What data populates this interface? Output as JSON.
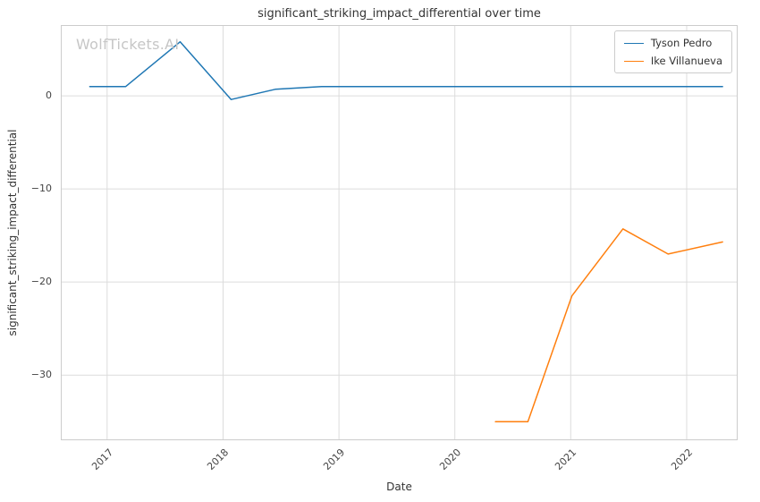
{
  "title": "significant_striking_impact_differential over time",
  "watermark": "WolfTickets.AI",
  "axes": {
    "xlabel": "Date",
    "ylabel": "significant_striking_impact_differential"
  },
  "legend": [
    {
      "label": "Tyson Pedro",
      "color": "#1f77b4"
    },
    {
      "label": "Ike Villanueva",
      "color": "#ff7f0e"
    }
  ],
  "colors": {
    "grid": "#dcdcdc",
    "spine": "#cccccc",
    "text": "#333333",
    "tick": "#444444",
    "watermark": "#c6c6c6"
  },
  "chart_data": {
    "type": "line",
    "title": "significant_striking_impact_differential over time",
    "xlabel": "Date",
    "ylabel": "significant_striking_impact_differential",
    "grid": true,
    "legend_position": "upper right",
    "xlim": [
      2016.6,
      2022.44
    ],
    "ylim": [
      -37.0,
      7.6
    ],
    "x_ticks": [
      2017,
      2018,
      2019,
      2020,
      2021,
      2022
    ],
    "x_tick_labels": [
      "2017",
      "2018",
      "2019",
      "2020",
      "2021",
      "2022"
    ],
    "y_ticks": [
      0,
      -10,
      -20,
      -30
    ],
    "y_tick_labels": [
      "0",
      "−10",
      "−20",
      "−30"
    ],
    "series": [
      {
        "name": "Tyson Pedro",
        "color": "#1f77b4",
        "points": [
          [
            2016.85,
            1.0
          ],
          [
            2017.16,
            1.0
          ],
          [
            2017.63,
            5.8
          ],
          [
            2018.07,
            -0.4
          ],
          [
            2018.45,
            0.7
          ],
          [
            2018.85,
            1.0
          ],
          [
            2019.5,
            1.0
          ],
          [
            2020.5,
            1.0
          ],
          [
            2021.5,
            1.0
          ],
          [
            2022.31,
            1.0
          ]
        ]
      },
      {
        "name": "Ike Villanueva",
        "color": "#ff7f0e",
        "points": [
          [
            2020.35,
            -35.0
          ],
          [
            2020.63,
            -35.0
          ],
          [
            2021.01,
            -21.5
          ],
          [
            2021.45,
            -14.3
          ],
          [
            2021.84,
            -17.0
          ],
          [
            2022.31,
            -15.7
          ]
        ]
      }
    ]
  }
}
